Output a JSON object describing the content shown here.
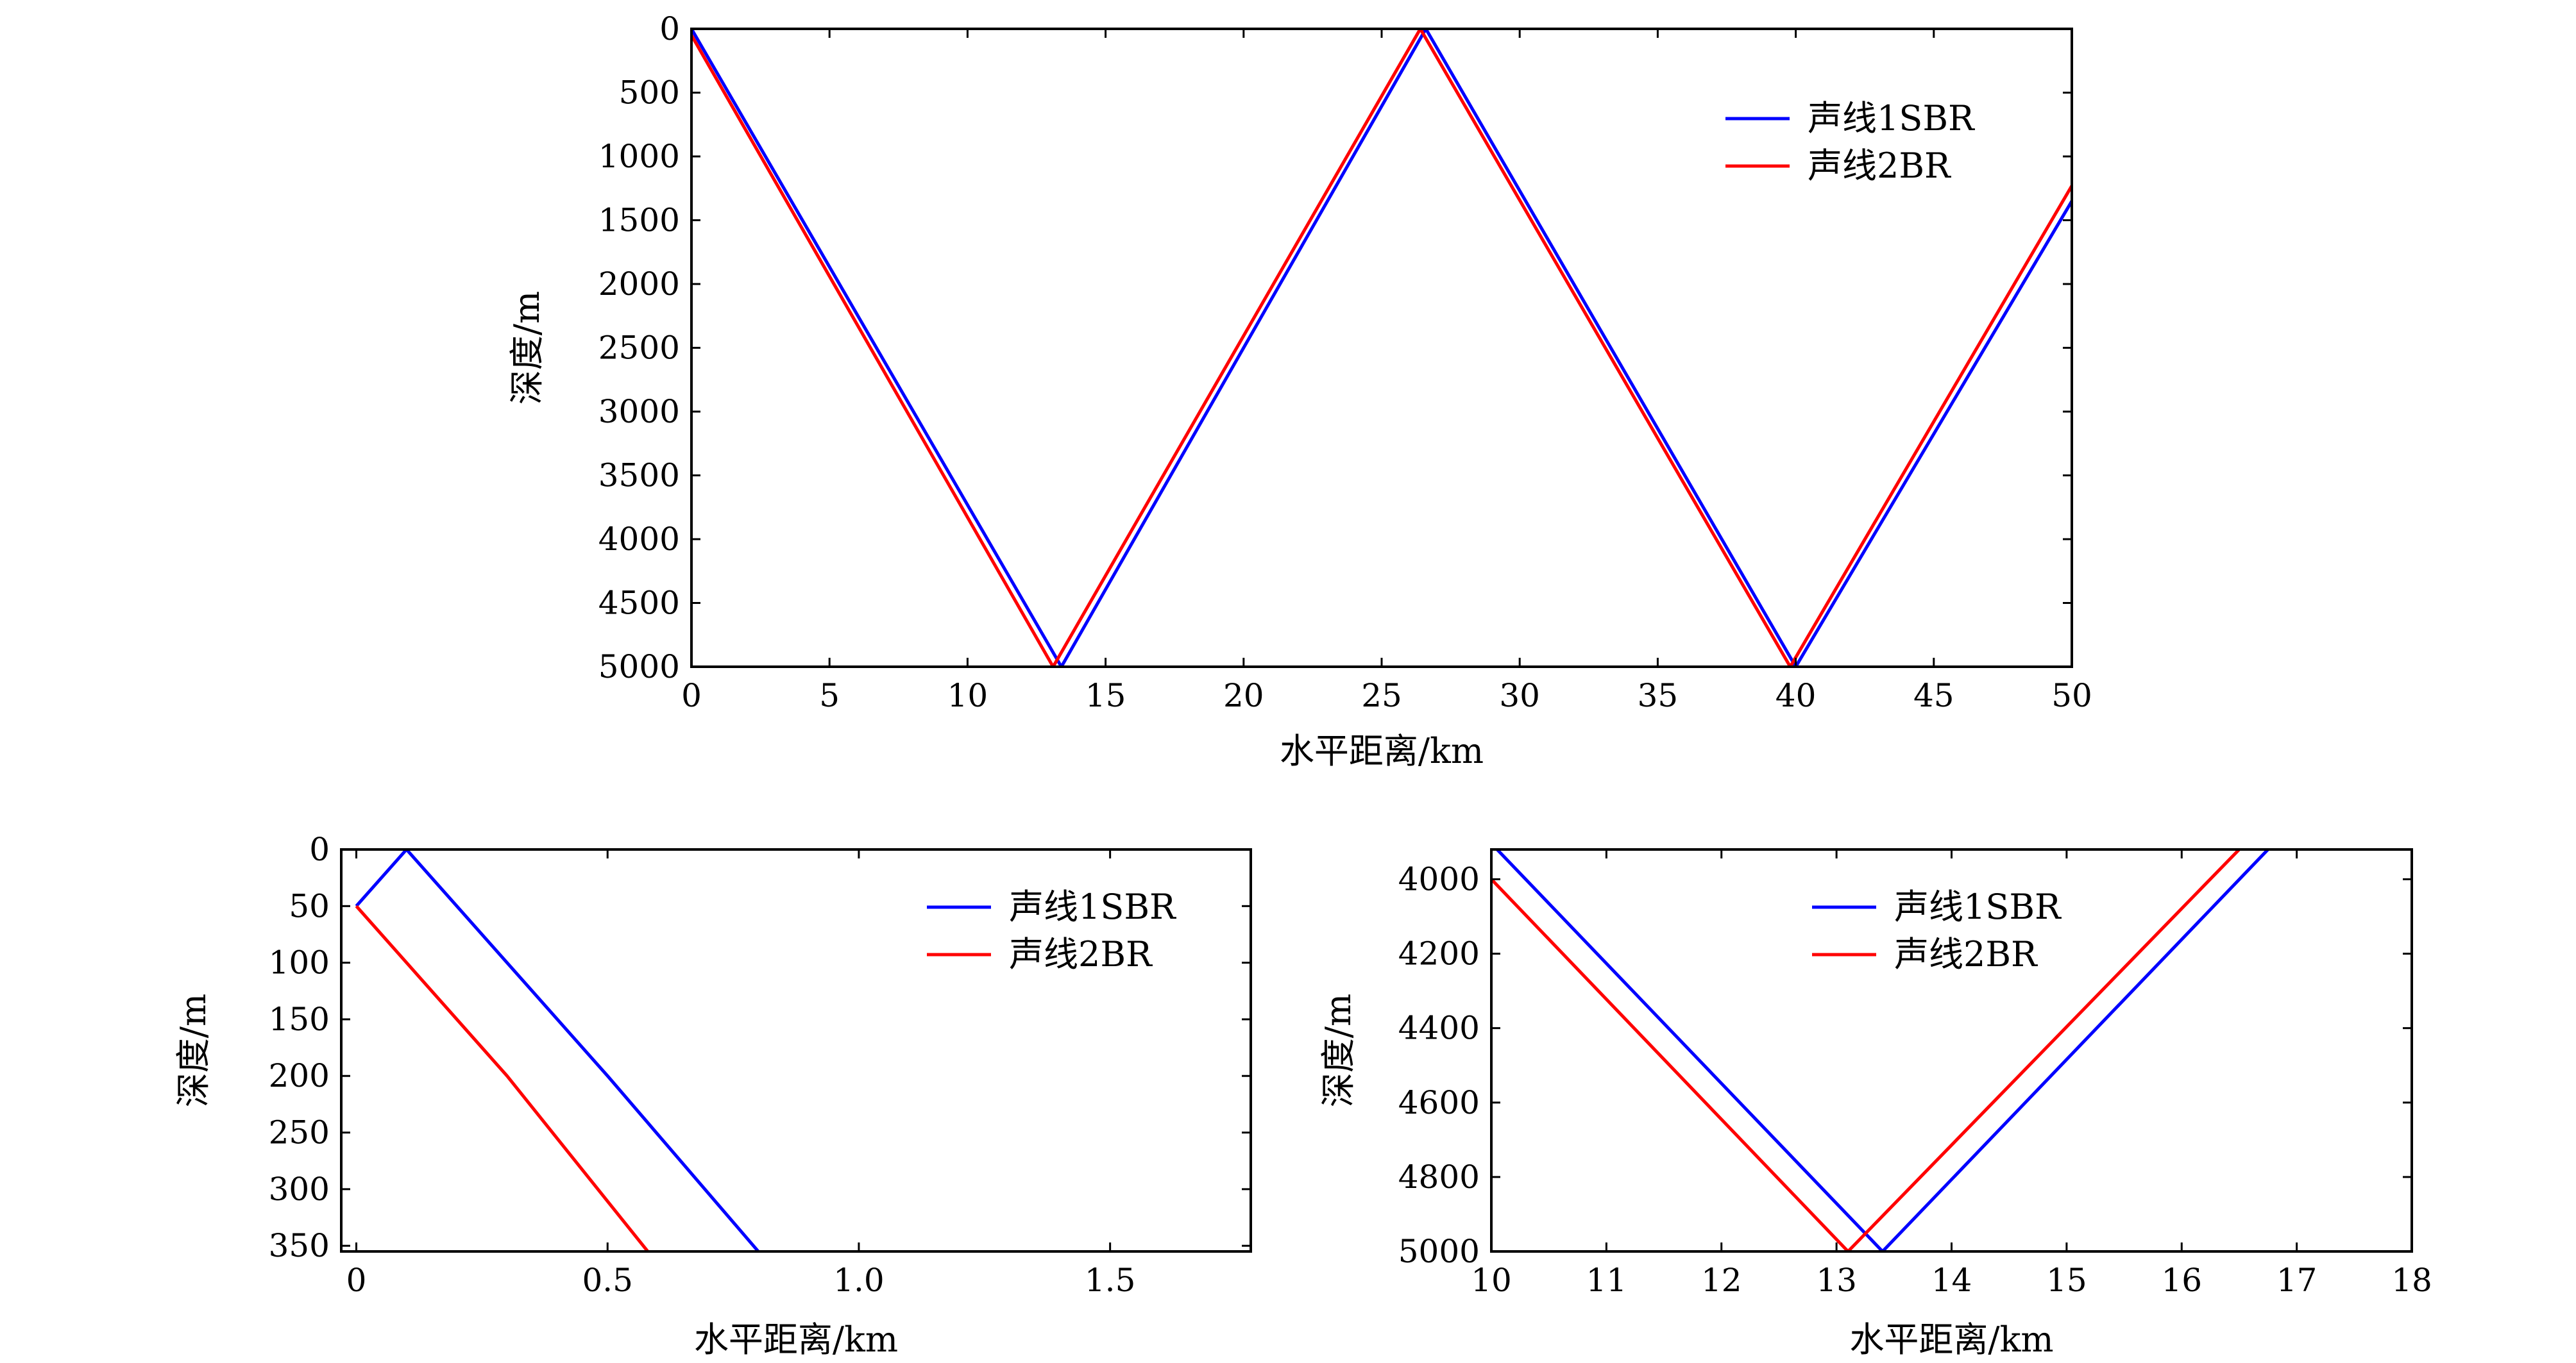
{
  "chart_data": [
    {
      "type": "line",
      "xlabel": "水平距离/km",
      "ylabel": "深度/m",
      "xlim": [
        0,
        50
      ],
      "ylim": [
        0,
        5000
      ],
      "y_inverted": true,
      "xticks": [
        "0",
        "5",
        "10",
        "15",
        "20",
        "25",
        "30",
        "35",
        "40",
        "45",
        "50"
      ],
      "yticks": [
        "0",
        "500",
        "1000",
        "1500",
        "2000",
        "2500",
        "3000",
        "3500",
        "4000",
        "4500",
        "5000"
      ],
      "grid": false,
      "legend": "top-right",
      "series": [
        {
          "name": "声线1SBR",
          "color": "#0000ff",
          "x": [
            0,
            13.4,
            26.6,
            40.0,
            50
          ],
          "y": [
            0,
            5000,
            0,
            5000,
            1350
          ]
        },
        {
          "name": "声线2BR",
          "color": "#ff0000",
          "x": [
            0,
            13.1,
            26.4,
            39.8,
            50
          ],
          "y": [
            50,
            5000,
            0,
            5000,
            1230
          ]
        }
      ]
    },
    {
      "type": "line",
      "xlabel": "水平距离/km",
      "ylabel": "深度/m",
      "xlim": [
        -0.03,
        1.78
      ],
      "ylim": [
        0,
        355
      ],
      "y_inverted": true,
      "xticks": [
        "0",
        "0.5",
        "1.0",
        "1.5"
      ],
      "yticks": [
        "0",
        "50",
        "100",
        "150",
        "200",
        "250",
        "300",
        "350"
      ],
      "grid": false,
      "legend": "top-right",
      "series": [
        {
          "name": "声线1SBR",
          "color": "#0000ff",
          "x": [
            0,
            0.1,
            0.5,
            0.8
          ],
          "y": [
            50,
            0,
            200,
            355
          ]
        },
        {
          "name": "声线2BR",
          "color": "#ff0000",
          "x": [
            0,
            0.3,
            0.58
          ],
          "y": [
            50,
            200,
            355
          ]
        }
      ]
    },
    {
      "type": "line",
      "xlabel": "水平距离/km",
      "ylabel": "深度/m",
      "xlim": [
        10,
        18
      ],
      "ylim": [
        3920,
        5000
      ],
      "y_inverted": true,
      "xticks": [
        "10",
        "11",
        "12",
        "13",
        "14",
        "15",
        "16",
        "17",
        "18"
      ],
      "yticks": [
        "4000",
        "4200",
        "4400",
        "4600",
        "4800",
        "5000"
      ],
      "grid": false,
      "legend": "top-right",
      "series": [
        {
          "name": "声线1SBR",
          "color": "#0000ff",
          "x": [
            10.05,
            13.4,
            16.75
          ],
          "y": [
            3920,
            5000,
            3920
          ]
        },
        {
          "name": "声线2BR",
          "color": "#ff0000",
          "x": [
            10,
            13.1,
            16.5
          ],
          "y": [
            4000,
            5000,
            3920
          ]
        }
      ]
    }
  ]
}
